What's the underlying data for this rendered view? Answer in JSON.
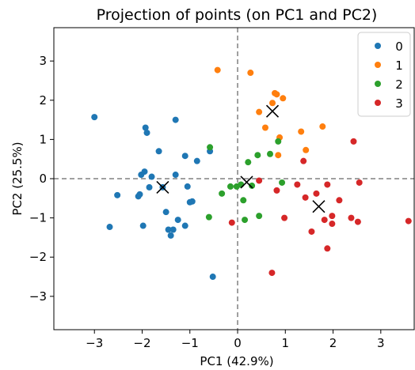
{
  "chart_data": {
    "type": "scatter",
    "title": "Projection of points (on PC1 and PC2)",
    "xlabel": "PC1 (42.9%)",
    "ylabel": "PC2 (25.5%)",
    "xlim": [
      -3.85,
      3.7
    ],
    "ylim": [
      -3.85,
      3.85
    ],
    "xticks": [
      -3,
      -2,
      -1,
      0,
      1,
      2,
      3
    ],
    "yticks": [
      -3,
      -2,
      -1,
      0,
      1,
      2,
      3
    ],
    "tick_labels_x": [
      "−3",
      "−2",
      "−1",
      "0",
      "1",
      "2",
      "3"
    ],
    "tick_labels_y": [
      "−3",
      "−2",
      "−1",
      "0",
      "1",
      "2",
      "3"
    ],
    "grid": false,
    "reference_lines": {
      "x": 0,
      "y": 0,
      "style": "dashed",
      "color": "#808080"
    },
    "legend": {
      "position": "top-right",
      "entries": [
        "0",
        "1",
        "2",
        "3"
      ]
    },
    "series": [
      {
        "name": "0",
        "color": "#1f77b4",
        "points": [
          [
            -3.0,
            1.57
          ],
          [
            -2.68,
            -1.23
          ],
          [
            -2.52,
            -0.42
          ],
          [
            -2.08,
            -0.45
          ],
          [
            -2.05,
            -0.4
          ],
          [
            -2.02,
            0.1
          ],
          [
            -1.93,
            1.3
          ],
          [
            -1.9,
            1.17
          ],
          [
            -1.95,
            0.18
          ],
          [
            -1.85,
            -0.22
          ],
          [
            -1.8,
            0.05
          ],
          [
            -1.65,
            0.7
          ],
          [
            -1.57,
            -0.22
          ],
          [
            -1.5,
            -0.85
          ],
          [
            -1.45,
            -1.3
          ],
          [
            -1.4,
            -1.45
          ],
          [
            -1.35,
            -1.3
          ],
          [
            -1.3,
            0.1
          ],
          [
            -1.3,
            1.5
          ],
          [
            -1.25,
            -1.05
          ],
          [
            -1.1,
            -1.2
          ],
          [
            -1.1,
            0.58
          ],
          [
            -1.05,
            -0.2
          ],
          [
            -1.0,
            -0.6
          ],
          [
            -0.95,
            -0.58
          ],
          [
            -0.85,
            0.45
          ],
          [
            -0.58,
            0.7
          ],
          [
            -0.52,
            -2.5
          ],
          [
            -1.98,
            -1.2
          ]
        ]
      },
      {
        "name": "1",
        "color": "#ff7f0e",
        "points": [
          [
            -0.42,
            2.77
          ],
          [
            0.27,
            2.7
          ],
          [
            0.45,
            1.7
          ],
          [
            0.58,
            1.3
          ],
          [
            0.73,
            1.93
          ],
          [
            0.78,
            2.18
          ],
          [
            0.82,
            2.15
          ],
          [
            0.85,
            0.6
          ],
          [
            0.88,
            1.05
          ],
          [
            0.95,
            2.05
          ],
          [
            1.33,
            1.2
          ],
          [
            1.43,
            0.73
          ],
          [
            1.78,
            1.33
          ]
        ]
      },
      {
        "name": "2",
        "color": "#2ca02c",
        "points": [
          [
            -0.58,
            0.8
          ],
          [
            -0.6,
            -0.98
          ],
          [
            -0.33,
            -0.38
          ],
          [
            -0.15,
            -0.2
          ],
          [
            -0.02,
            -0.2
          ],
          [
            0.07,
            -0.15
          ],
          [
            0.12,
            -0.55
          ],
          [
            0.15,
            -1.05
          ],
          [
            0.22,
            0.42
          ],
          [
            0.3,
            -0.18
          ],
          [
            0.42,
            0.6
          ],
          [
            0.45,
            -0.95
          ],
          [
            0.68,
            0.63
          ],
          [
            0.85,
            0.95
          ],
          [
            0.93,
            -0.1
          ]
        ]
      },
      {
        "name": "3",
        "color": "#d62728",
        "points": [
          [
            -0.12,
            -1.12
          ],
          [
            0.45,
            -0.05
          ],
          [
            0.72,
            -2.4
          ],
          [
            0.82,
            -0.3
          ],
          [
            0.98,
            -1.0
          ],
          [
            1.25,
            -0.15
          ],
          [
            1.38,
            0.45
          ],
          [
            1.42,
            -0.48
          ],
          [
            1.55,
            -1.35
          ],
          [
            1.65,
            -0.38
          ],
          [
            1.82,
            -1.05
          ],
          [
            1.88,
            -1.78
          ],
          [
            1.88,
            -0.15
          ],
          [
            1.98,
            -0.95
          ],
          [
            1.98,
            -1.15
          ],
          [
            2.13,
            -0.55
          ],
          [
            2.38,
            -1.0
          ],
          [
            2.43,
            0.95
          ],
          [
            2.52,
            -1.1
          ],
          [
            2.55,
            -0.1
          ],
          [
            3.58,
            -1.08
          ]
        ]
      }
    ],
    "centroids": {
      "marker": "x",
      "color": "#000000",
      "points": [
        [
          -1.57,
          -0.22
        ],
        [
          0.73,
          1.72
        ],
        [
          0.19,
          -0.09
        ],
        [
          1.7,
          -0.71
        ]
      ]
    }
  }
}
